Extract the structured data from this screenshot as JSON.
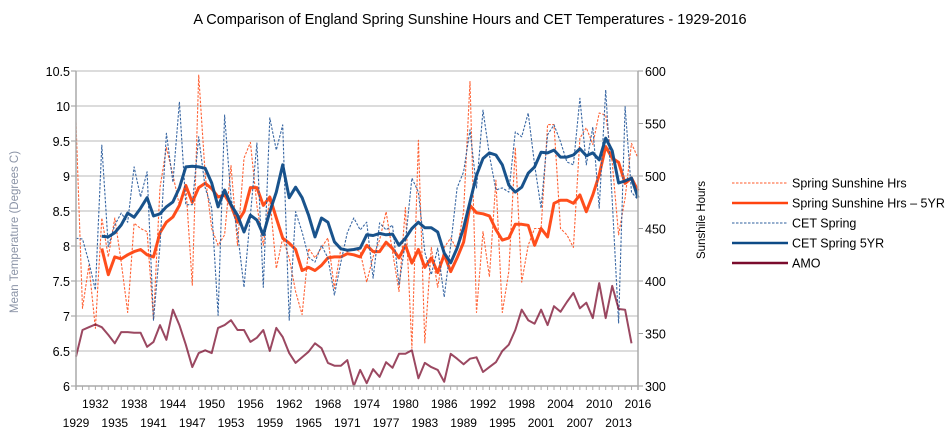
{
  "chart_data": {
    "type": "line",
    "title": "A Comparison of England Spring Sunshine Hours and CET Temperatures - 1929-2016",
    "ylabel": "Mean Temperature (Degrees C)",
    "y2label": "Sunshile Hours",
    "ylim": [
      6,
      10.5
    ],
    "y2lim": [
      300,
      600
    ],
    "yticks": [
      "6",
      "6.5",
      "7",
      "7.5",
      "8",
      "8.5",
      "9",
      "9.5",
      "10",
      "10.5"
    ],
    "y2ticks": [
      "300",
      "350",
      "400",
      "450",
      "500",
      "550",
      "600"
    ],
    "xlim": [
      1929,
      2016
    ],
    "xticks_row1": [
      "1932",
      "1938",
      "1944",
      "1950",
      "1956",
      "1962",
      "1968",
      "1974",
      "1980",
      "1986",
      "1992",
      "1998",
      "2004",
      "2010",
      "2016"
    ],
    "xticks_row2": [
      "1929",
      "1935",
      "1941",
      "1947",
      "1953",
      "1959",
      "1965",
      "1971",
      "1977",
      "1983",
      "1989",
      "1995",
      "2001",
      "2007",
      "2013"
    ],
    "grid": true,
    "legend_position": "right",
    "series": [
      {
        "name": "Spring Sunshine Hrs",
        "axis": "right",
        "style": "dashed",
        "color": "#ff5a2a",
        "start": 1929,
        "values": [
          551,
          374,
          415,
          355,
          460,
          423,
          460,
          418,
          370,
          455,
          450,
          447,
          363,
          489,
          527,
          501,
          472,
          491,
          396,
          596,
          501,
          450,
          434,
          444,
          510,
          434,
          517,
          532,
          472,
          434,
          479,
          412,
          441,
          422,
          390,
          368,
          431,
          422,
          432,
          441,
          393,
          431,
          428,
          431,
          428,
          399,
          423,
          439,
          466,
          428,
          390,
          470,
          336,
          534,
          341,
          432,
          394,
          432,
          441,
          430,
          466,
          590,
          370,
          447,
          404,
          496,
          370,
          409,
          527,
          399,
          434,
          450,
          450,
          549,
          549,
          450,
          444,
          432,
          536,
          546,
          530,
          560,
          558,
          513,
          444,
          479,
          531,
          517
        ]
      },
      {
        "name": "Spring Sunshine Hrs – 5YR",
        "axis": "right",
        "style": "solid",
        "color": "#ff4410",
        "start": 1933,
        "values": [
          431,
          406,
          423,
          421,
          425,
          428,
          430,
          425,
          423,
          446,
          456,
          461,
          472,
          491,
          475,
          489,
          493,
          488,
          480,
          482,
          472,
          456,
          466,
          489,
          489,
          472,
          480,
          460,
          441,
          436,
          430,
          410,
          413,
          410,
          415,
          422,
          423,
          423,
          426,
          425,
          423,
          434,
          428,
          428,
          437,
          431,
          422,
          434,
          417,
          430,
          413,
          422,
          408,
          425,
          409,
          422,
          437,
          472,
          465,
          464,
          462,
          449,
          439,
          441,
          454,
          454,
          453,
          434,
          450,
          442,
          474,
          477,
          477,
          474,
          482,
          466,
          482,
          501,
          528,
          517,
          513,
          493,
          498,
          486
        ]
      },
      {
        "name": "CET Spring",
        "axis": "left",
        "style": "dashed",
        "color": "#2e5f9e",
        "start": 1929,
        "values": [
          8.11,
          8.1,
          7.77,
          7.37,
          9.44,
          7.99,
          8.3,
          8.47,
          8.34,
          9.13,
          8.7,
          9.06,
          6.94,
          8.01,
          9.61,
          8.91,
          10.06,
          8.59,
          8.59,
          9.56,
          8.83,
          8.54,
          7.01,
          9.87,
          8.69,
          8.2,
          7.41,
          8.44,
          9.47,
          7.41,
          9.83,
          9.37,
          9.73,
          6.94,
          8.49,
          8.2,
          7.84,
          7.77,
          8.01,
          7.83,
          7.3,
          7.77,
          8.19,
          8.4,
          8.23,
          8.34,
          7.54,
          8.33,
          8.23,
          8.3,
          7.44,
          8.06,
          8.97,
          8.77,
          7.91,
          7.59,
          7.97,
          7.27,
          8.01,
          8.83,
          9.06,
          9.66,
          8.83,
          9.94,
          9.3,
          8.8,
          8.83,
          8.77,
          9.63,
          9.56,
          9.9,
          9.16,
          8.54,
          9.59,
          9.73,
          9.49,
          9.2,
          9.16,
          10.11,
          9.16,
          9.7,
          8.54,
          10.23,
          8.66,
          6.9,
          9.99,
          8.77,
          8.66
        ]
      },
      {
        "name": "CET Spring 5YR",
        "axis": "left",
        "style": "solid",
        "color": "#0d4a86",
        "start": 1933,
        "values": [
          8.14,
          8.13,
          8.19,
          8.3,
          8.47,
          8.41,
          8.54,
          8.69,
          8.43,
          8.46,
          8.56,
          8.63,
          8.83,
          9.13,
          9.14,
          9.13,
          9.11,
          8.9,
          8.56,
          8.8,
          8.59,
          8.44,
          8.2,
          8.44,
          8.37,
          8.16,
          8.49,
          8.77,
          9.16,
          8.69,
          8.84,
          8.69,
          8.44,
          8.13,
          8.4,
          8.34,
          8.06,
          7.96,
          7.94,
          7.95,
          7.97,
          8.16,
          8.15,
          8.18,
          8.16,
          8.17,
          8.01,
          8.11,
          8.25,
          8.34,
          8.26,
          8.26,
          8.2,
          7.9,
          7.76,
          7.97,
          8.26,
          8.63,
          9.01,
          9.25,
          9.33,
          9.3,
          9.16,
          8.87,
          8.77,
          8.84,
          9.04,
          9.13,
          9.34,
          9.33,
          9.37,
          9.27,
          9.27,
          9.3,
          9.39,
          9.29,
          9.33,
          9.23,
          9.54,
          9.36,
          8.9,
          8.93,
          8.97,
          8.69
        ]
      },
      {
        "name": "AMO",
        "axis": "left",
        "style": "solid",
        "color": "#7a0b2c",
        "start": 1929,
        "values": [
          6.42,
          6.8,
          6.84,
          6.88,
          6.84,
          6.73,
          6.61,
          6.77,
          6.77,
          6.76,
          6.76,
          6.56,
          6.63,
          6.87,
          6.66,
          7.09,
          6.87,
          6.59,
          6.27,
          6.47,
          6.51,
          6.47,
          6.83,
          6.87,
          6.94,
          6.8,
          6.8,
          6.63,
          6.69,
          6.8,
          6.5,
          6.83,
          6.7,
          6.47,
          6.33,
          6.41,
          6.49,
          6.61,
          6.54,
          6.33,
          6.29,
          6.29,
          6.37,
          6.0,
          6.23,
          6.04,
          6.24,
          6.13,
          6.34,
          6.26,
          6.46,
          6.46,
          6.51,
          6.11,
          6.33,
          6.27,
          6.23,
          6.06,
          6.46,
          6.39,
          6.31,
          6.39,
          6.41,
          6.2,
          6.27,
          6.34,
          6.5,
          6.59,
          6.8,
          7.09,
          6.94,
          6.89,
          7.09,
          6.87,
          7.14,
          7.06,
          7.2,
          7.33,
          7.11,
          7.19,
          6.97,
          7.47,
          6.97,
          7.43,
          7.1,
          7.09,
          6.61
        ]
      }
    ]
  }
}
